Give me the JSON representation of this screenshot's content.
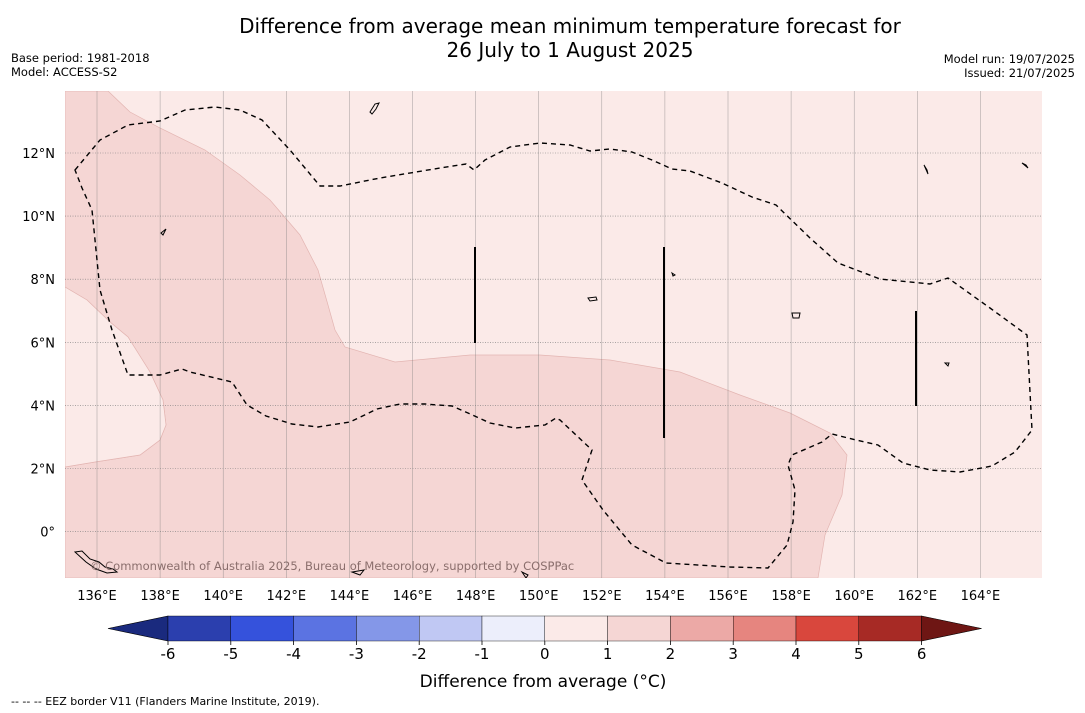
{
  "title_line1": "Difference from average mean minimum temperature forecast for",
  "title_line2": "26 July to 1 August 2025",
  "meta_left": {
    "base_period": "Base period: 1981-2018",
    "model": "Model: ACCESS-S2"
  },
  "meta_right": {
    "model_run": "Model run: 19/07/2025",
    "issued": "Issued: 21/07/2025"
  },
  "map": {
    "lon_ticks": [
      "136°E",
      "138°E",
      "140°E",
      "142°E",
      "144°E",
      "146°E",
      "148°E",
      "150°E",
      "152°E",
      "154°E",
      "156°E",
      "158°E",
      "160°E",
      "162°E",
      "164°E"
    ],
    "lat_ticks": [
      "12°N",
      "10°N",
      "8°N",
      "6°N",
      "4°N",
      "2°N",
      "0°"
    ],
    "watermark": "© Commonwealth of Australia 2025, Bureau of Meteorology, supported by COSPPac",
    "colors": {
      "zone_0_1": "#fbeae8",
      "zone_1_2": "#f5d6d4",
      "land": "#ffffff",
      "eez": "#000000"
    }
  },
  "colorbar": {
    "ticks": [
      "-6",
      "-5",
      "-4",
      "-3",
      "-2",
      "-1",
      "0",
      "1",
      "2",
      "3",
      "4",
      "5",
      "6"
    ],
    "colors": [
      "#1a2a7e",
      "#2b3fae",
      "#3552dc",
      "#5b73e2",
      "#8497e8",
      "#c0c8f3",
      "#eceefb",
      "#fbeae8",
      "#f5d6d4",
      "#eca9a6",
      "#e6857f",
      "#d9473d",
      "#a72a25",
      "#6e1614"
    ],
    "label": "Difference from average (",
    "label_unit": "°C",
    "label_end": ")"
  },
  "footnote": "--  --  -- EEZ border V11 (Flanders Marine Institute, 2019)."
}
